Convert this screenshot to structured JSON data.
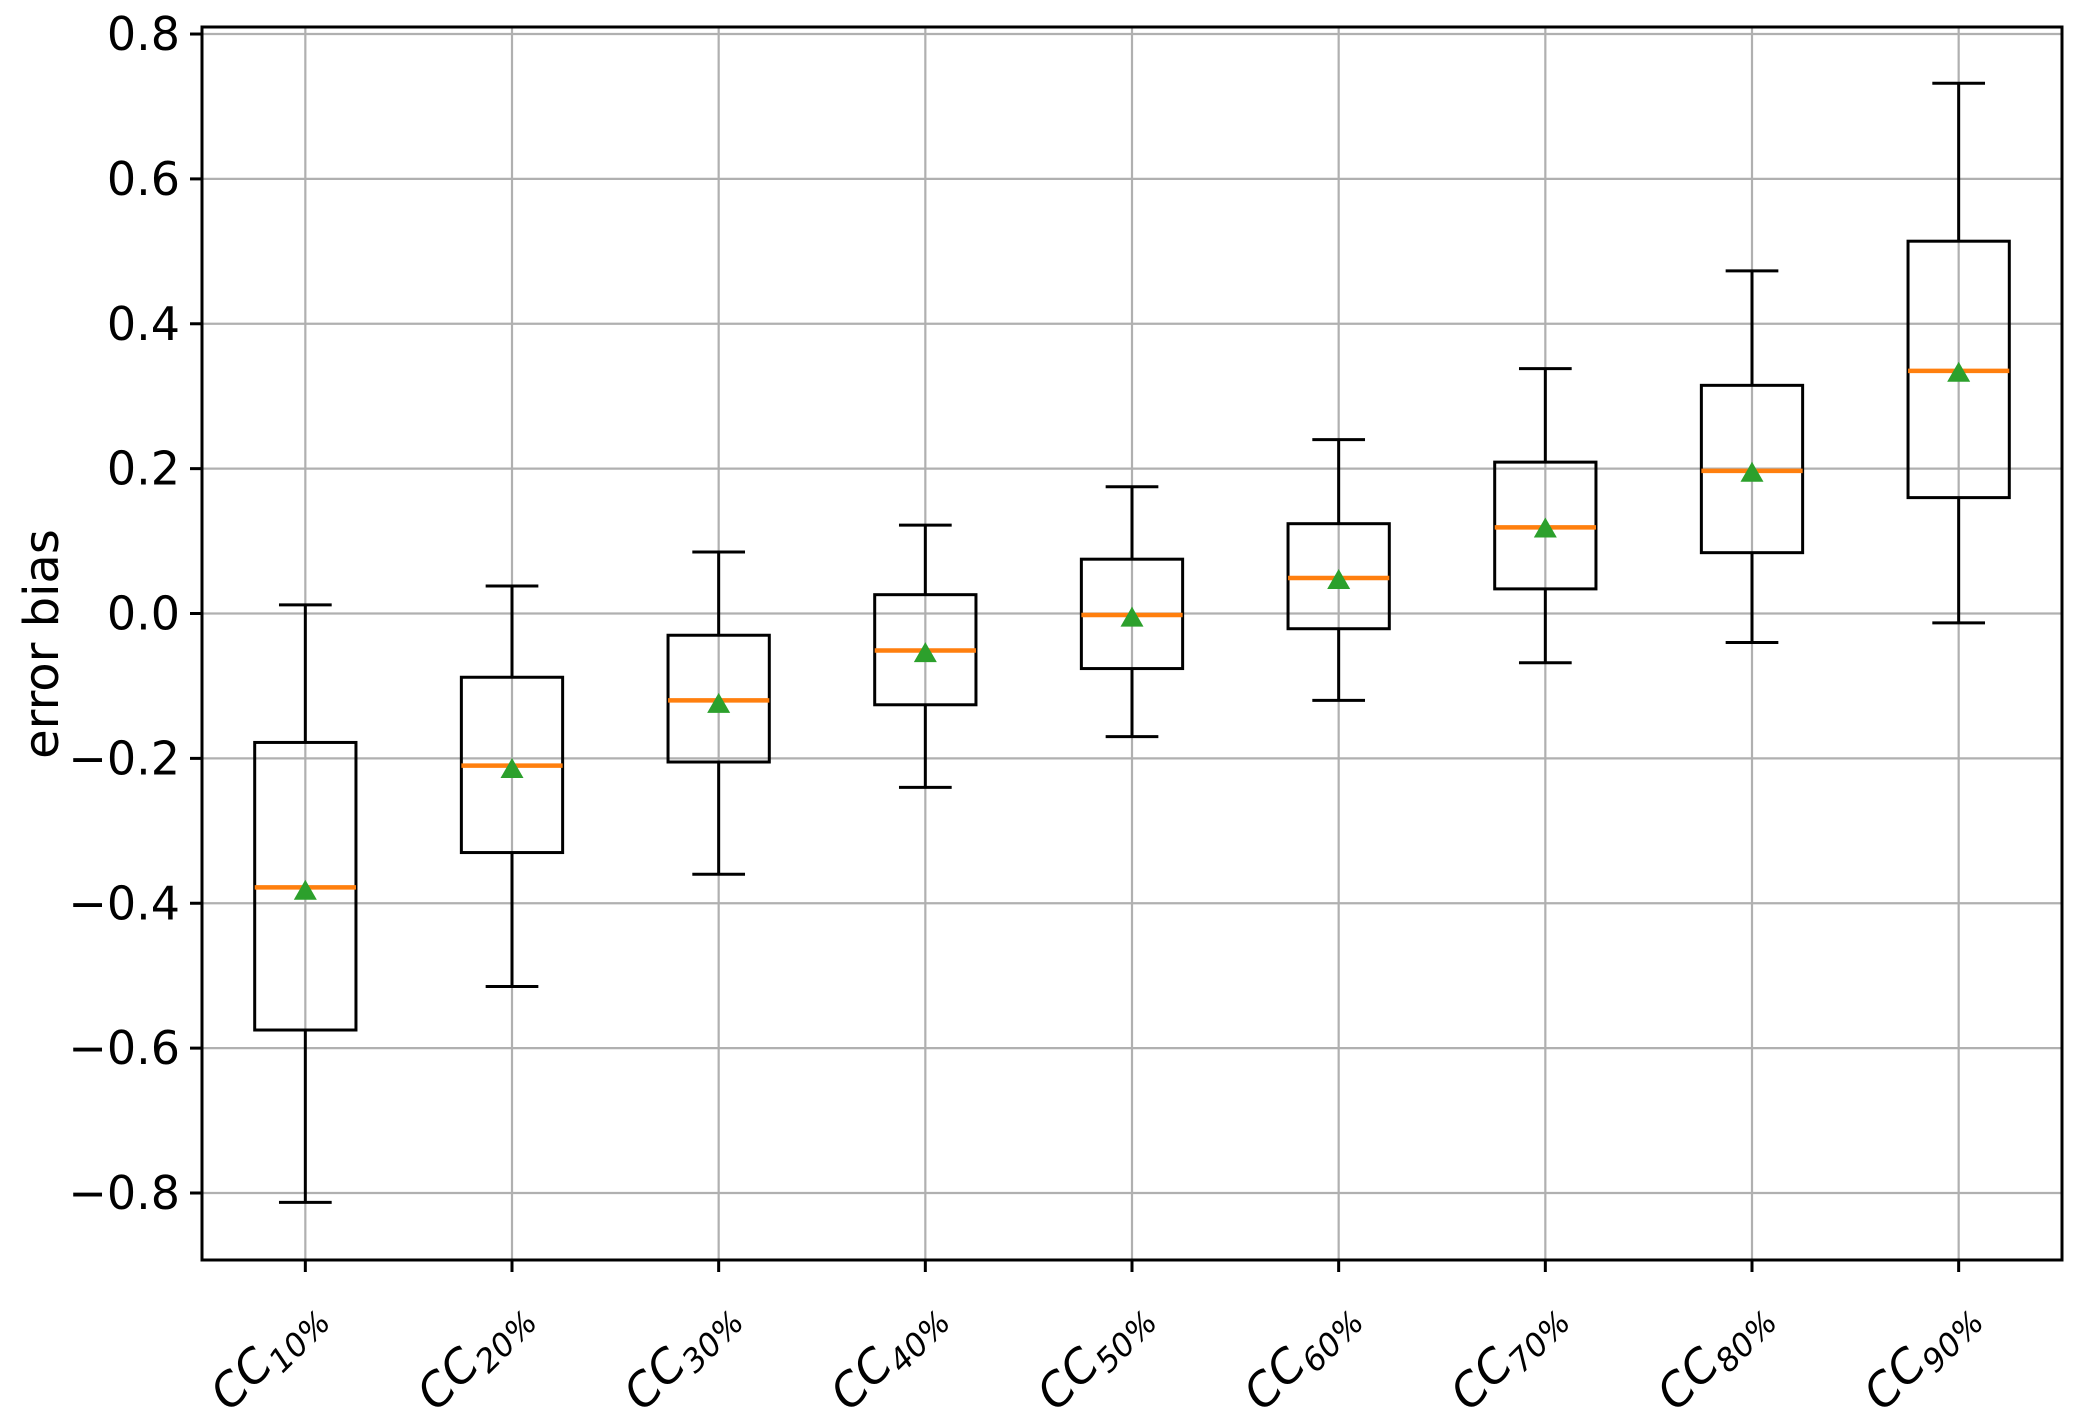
{
  "chart_data": {
    "type": "box",
    "title": "",
    "xlabel": "",
    "ylabel": "error bias",
    "grid": true,
    "legend": null,
    "ylim": [
      -0.8925,
      0.8097
    ],
    "xlim": [
      0.5,
      9.5
    ],
    "ytick_labels": [
      "0.8",
      "0.6",
      "0.4",
      "0.2",
      "0.0",
      "−0.2",
      "−0.4",
      "−0.6",
      "−0.8"
    ],
    "ytick_values": [
      0.8,
      0.6,
      0.4,
      0.2,
      0.0,
      -0.2,
      -0.4,
      -0.6,
      -0.8
    ],
    "categories": [
      {
        "base": "CC",
        "sub": "10%"
      },
      {
        "base": "CC",
        "sub": "20%"
      },
      {
        "base": "CC",
        "sub": "30%"
      },
      {
        "base": "CC",
        "sub": "40%"
      },
      {
        "base": "CC",
        "sub": "50%"
      },
      {
        "base": "CC",
        "sub": "60%"
      },
      {
        "base": "CC",
        "sub": "70%"
      },
      {
        "base": "CC",
        "sub": "80%"
      },
      {
        "base": "CC",
        "sub": "90%"
      }
    ],
    "boxes": [
      {
        "label": "CC10%",
        "whislo": -0.813,
        "q1": -0.575,
        "med": -0.378,
        "mean": -0.382,
        "q3": -0.178,
        "whishi": 0.012
      },
      {
        "label": "CC20%",
        "whislo": -0.515,
        "q1": -0.33,
        "med": -0.21,
        "mean": -0.214,
        "q3": -0.088,
        "whishi": 0.038
      },
      {
        "label": "CC30%",
        "whislo": -0.36,
        "q1": -0.205,
        "med": -0.12,
        "mean": -0.124,
        "q3": -0.03,
        "whishi": 0.085
      },
      {
        "label": "CC40%",
        "whislo": -0.24,
        "q1": -0.126,
        "med": -0.051,
        "mean": -0.054,
        "q3": 0.026,
        "whishi": 0.122
      },
      {
        "label": "CC50%",
        "whislo": -0.17,
        "q1": -0.076,
        "med": -0.002,
        "mean": -0.005,
        "q3": 0.075,
        "whishi": 0.175
      },
      {
        "label": "CC60%",
        "whislo": -0.12,
        "q1": -0.021,
        "med": 0.049,
        "mean": 0.047,
        "q3": 0.124,
        "whishi": 0.24
      },
      {
        "label": "CC70%",
        "whislo": -0.068,
        "q1": 0.034,
        "med": 0.119,
        "mean": 0.118,
        "q3": 0.209,
        "whishi": 0.338
      },
      {
        "label": "CC80%",
        "whislo": -0.04,
        "q1": 0.084,
        "med": 0.197,
        "mean": 0.195,
        "q3": 0.315,
        "whishi": 0.473
      },
      {
        "label": "CC90%",
        "whislo": -0.013,
        "q1": 0.16,
        "med": 0.335,
        "mean": 0.333,
        "q3": 0.514,
        "whishi": 0.732
      }
    ],
    "box_width": 0.49,
    "cap_width": 0.255,
    "mean_marker": "triangle-up",
    "colors": {
      "box": "#000000",
      "whisker": "#000000",
      "median": "#ff7f0e",
      "mean": "#2ca02c",
      "grid": "#b0b0b0",
      "spine": "#000000",
      "background": "#ffffff"
    }
  }
}
